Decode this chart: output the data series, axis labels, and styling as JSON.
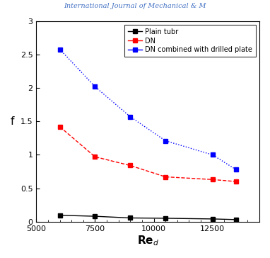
{
  "plain_tube_x": [
    6000,
    7500,
    9000,
    10500,
    12500,
    13500
  ],
  "plain_tube_y": [
    0.095,
    0.08,
    0.055,
    0.05,
    0.04,
    0.03
  ],
  "dn_x": [
    6000,
    7500,
    9000,
    10500,
    12500,
    13500
  ],
  "dn_y": [
    1.42,
    0.97,
    0.84,
    0.67,
    0.63,
    0.6
  ],
  "dn_drilled_x": [
    6000,
    7500,
    9000,
    10500,
    12500,
    13500
  ],
  "dn_drilled_y": [
    2.58,
    2.02,
    1.57,
    1.21,
    1.0,
    0.78
  ],
  "xlabel": "Re$_{d}$",
  "ylabel": "f",
  "xlim": [
    5000,
    14500
  ],
  "ylim": [
    0,
    3
  ],
  "xticks": [
    5000,
    7500,
    10000,
    12500
  ],
  "yticks": [
    0,
    0.5,
    1,
    1.5,
    2,
    2.5,
    3
  ],
  "legend_plain": "Plain tubr",
  "legend_dn": "DN",
  "legend_dn_drilled": "DN combined with drilled plate",
  "color_plain": "black",
  "color_dn": "red",
  "color_dn_drilled": "blue",
  "header_text": "International Journal of Mechanical & M",
  "header_color": "#4472c4"
}
